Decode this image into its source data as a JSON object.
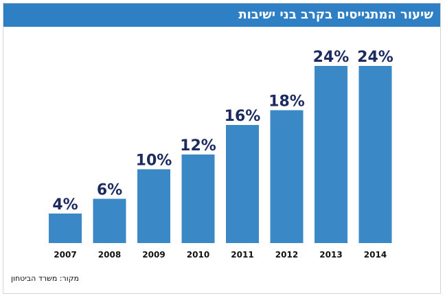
{
  "colors": {
    "header": "#2f7fc4",
    "bar": "#3a88c5",
    "value_text": "#1c2a5f",
    "year_text": "#111111"
  },
  "chart_data": {
    "type": "bar",
    "title": "שיעור המתגייסים בקרב בני ישיבות",
    "categories": [
      "2007",
      "2008",
      "2009",
      "2010",
      "2011",
      "2012",
      "2013",
      "2014"
    ],
    "values": [
      4,
      6,
      10,
      12,
      16,
      18,
      24,
      24
    ],
    "value_labels": [
      "4%",
      "6%",
      "10%",
      "12%",
      "16%",
      "18%",
      "24%",
      "24%"
    ],
    "xlabel": "",
    "ylabel": "",
    "ylim": [
      0,
      24
    ],
    "grid": false,
    "legend": "none",
    "source": "מקור: משרד הביטחון"
  }
}
